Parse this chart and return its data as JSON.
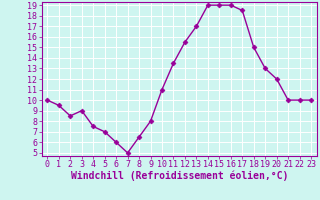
{
  "x": [
    0,
    1,
    2,
    3,
    4,
    5,
    6,
    7,
    8,
    9,
    10,
    11,
    12,
    13,
    14,
    15,
    16,
    17,
    18,
    19,
    20,
    21,
    22,
    23
  ],
  "y": [
    10,
    9.5,
    8.5,
    9,
    7.5,
    7,
    6,
    5,
    6.5,
    8,
    11,
    13.5,
    15.5,
    17,
    19,
    19,
    19,
    18.5,
    15,
    13,
    12,
    10,
    10,
    10
  ],
  "line_color": "#990099",
  "marker": "D",
  "marker_size": 2.5,
  "xlabel": "Windchill (Refroidissement éolien,°C)",
  "ylim": [
    5,
    19
  ],
  "xlim": [
    -0.5,
    23.5
  ],
  "yticks": [
    5,
    6,
    7,
    8,
    9,
    10,
    11,
    12,
    13,
    14,
    15,
    16,
    17,
    18,
    19
  ],
  "xticks": [
    0,
    1,
    2,
    3,
    4,
    5,
    6,
    7,
    8,
    9,
    10,
    11,
    12,
    13,
    14,
    15,
    16,
    17,
    18,
    19,
    20,
    21,
    22,
    23
  ],
  "bg_color": "#cef5f0",
  "grid_color": "#ffffff",
  "border_color": "#990099",
  "tick_label_color": "#990099",
  "xlabel_color": "#990099",
  "xlabel_fontsize": 7,
  "tick_fontsize": 6,
  "linewidth": 1.0
}
